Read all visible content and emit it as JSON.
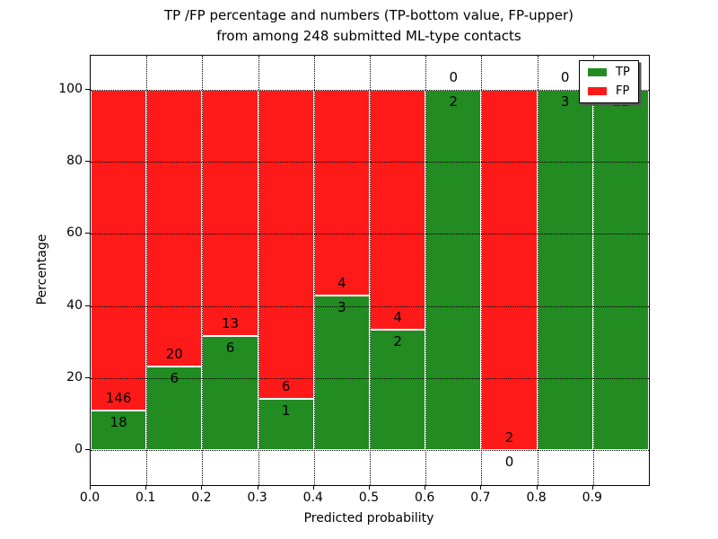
{
  "chart_data": {
    "type": "bar",
    "stacked": true,
    "title_line1": "TP /FP percentage and numbers (TP-bottom value, FP-upper)",
    "title_line2": "from among 248 submitted ML-type contacts",
    "xlabel": "Predicted probability",
    "ylabel": "Percentage",
    "total_contacts": 248,
    "x_tick_labels": [
      "0.0",
      "0.1",
      "0.2",
      "0.3",
      "0.4",
      "0.5",
      "0.6",
      "0.7",
      "0.8",
      "0.9"
    ],
    "y_ticks": [
      0,
      20,
      40,
      60,
      80,
      100
    ],
    "y_tick_labels": [
      "0",
      "20",
      "40",
      "60",
      "80",
      "100"
    ],
    "xlim": [
      0.0,
      1.0
    ],
    "ylim": [
      -9.5,
      109.5
    ],
    "grid": true,
    "grid_style": "dotted",
    "bar_edge_color": "#ffffff",
    "colors": {
      "tp": "#228B22",
      "fp": "#FF1A1A"
    },
    "legend": {
      "position": "upper right",
      "entries": [
        {
          "label": "TP",
          "color": "#228B22"
        },
        {
          "label": "FP",
          "color": "#FF1A1A"
        }
      ]
    },
    "bins": [
      {
        "x0": 0.0,
        "x1": 0.1,
        "tp": 18,
        "fp": 146
      },
      {
        "x0": 0.1,
        "x1": 0.2,
        "tp": 6,
        "fp": 20
      },
      {
        "x0": 0.2,
        "x1": 0.3,
        "tp": 6,
        "fp": 13
      },
      {
        "x0": 0.3,
        "x1": 0.4,
        "tp": 1,
        "fp": 6
      },
      {
        "x0": 0.4,
        "x1": 0.5,
        "tp": 3,
        "fp": 4
      },
      {
        "x0": 0.5,
        "x1": 0.6,
        "tp": 2,
        "fp": 4
      },
      {
        "x0": 0.6,
        "x1": 0.7,
        "tp": 2,
        "fp": 0
      },
      {
        "x0": 0.7,
        "x1": 0.8,
        "tp": 0,
        "fp": 2
      },
      {
        "x0": 0.8,
        "x1": 0.9,
        "tp": 3,
        "fp": 0
      },
      {
        "x0": 0.9,
        "x1": 1.0,
        "tp": 12,
        "fp": 0
      }
    ]
  }
}
